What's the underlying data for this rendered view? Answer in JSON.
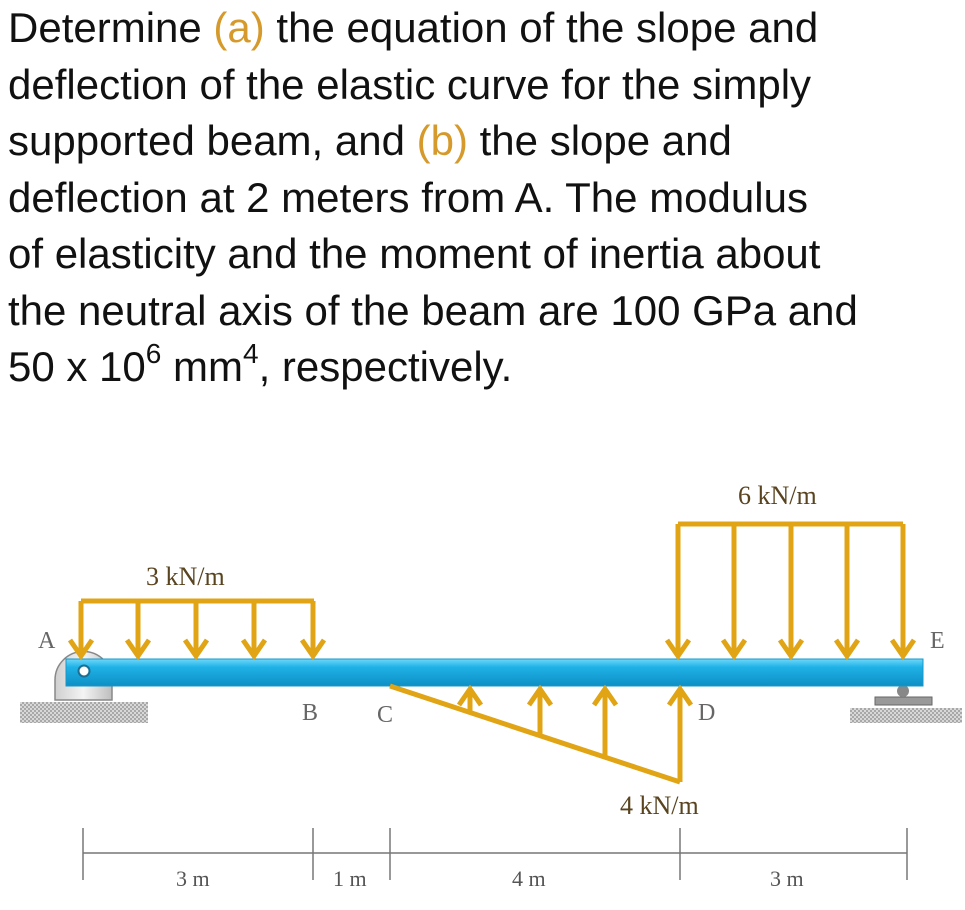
{
  "problem": {
    "line1_pre": "Determine ",
    "part_a": "(a)",
    "line1_post": " the equation of the slope and",
    "line2": "deflection of the elastic curve for the simply",
    "line3_pre": "supported beam, and ",
    "part_b": "(b)",
    "line3_post": " the slope and",
    "line4": "deflection at 2 meters from A. The modulus",
    "line5": "of elasticity and the moment of inertia about",
    "line6": "the neutral axis of the beam are 100 GPa and",
    "line7_a": "50 x 10",
    "line7_exp1": "6",
    "line7_b": " mm",
    "line7_exp2": "4",
    "line7_c": ", respectively."
  },
  "diagram": {
    "points": {
      "A": "A",
      "B": "B",
      "C": "C",
      "D": "D",
      "E": "E"
    },
    "loads": {
      "left_udl": "3 kN/m",
      "right_udl": "6 kN/m",
      "triangular": "4 kN/m"
    },
    "dimensions": [
      "3 m",
      "1 m",
      "4 m",
      "3 m"
    ],
    "colors": {
      "beam": "#1fb2e6",
      "load": "#e0a414",
      "text_accent": "#d59a2b"
    }
  }
}
